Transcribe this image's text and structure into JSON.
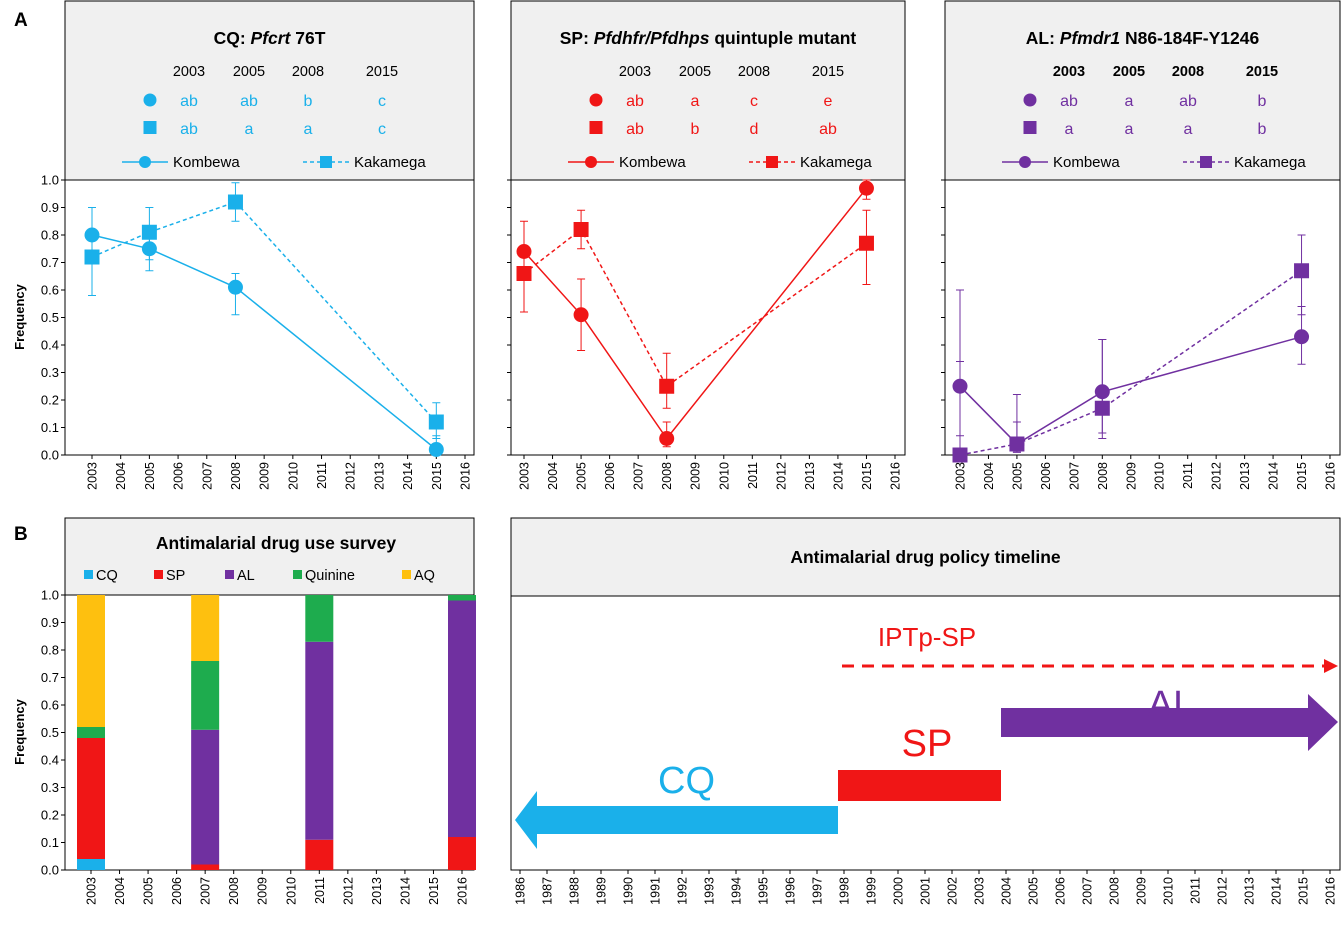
{
  "panel_labels": {
    "a": "A",
    "b": "B"
  },
  "ylabel": "Frequency",
  "y_ticks": [
    "0.0",
    "0.1",
    "0.2",
    "0.3",
    "0.4",
    "0.5",
    "0.6",
    "0.7",
    "0.8",
    "0.9",
    "1.0"
  ],
  "colors": {
    "cq": "#1ab0ea",
    "sp": "#f01616",
    "al": "#7030a0",
    "quinine": "#1eac4e",
    "aq": "#fec00f",
    "header_bg": "#f0f0f0"
  },
  "chart_data": [
    {
      "type": "line",
      "title_prefix": "CQ: ",
      "title_italic": "Pfcrt",
      "title_suffix": " 76T",
      "years_header": [
        "2003",
        "2005",
        "2008",
        "2015"
      ],
      "letters": {
        "Kombewa": [
          "ab",
          "ab",
          "b",
          "c"
        ],
        "Kakamega": [
          "ab",
          "a",
          "a",
          "c"
        ]
      },
      "legend": [
        "Kombewa",
        "Kakamega"
      ],
      "x_ticks": [
        "2003",
        "2004",
        "2005",
        "2006",
        "2007",
        "2008",
        "2009",
        "2010",
        "2011",
        "2012",
        "2013",
        "2014",
        "2015",
        "2016"
      ],
      "ylim": [
        0,
        1
      ],
      "series": [
        {
          "name": "Kombewa",
          "marker": "circle",
          "dash": false,
          "x": [
            2003,
            2005,
            2008,
            2015
          ],
          "y": [
            0.8,
            0.75,
            0.61,
            0.02
          ],
          "err_low": [
            0.07,
            0.08,
            0.1,
            0.01
          ],
          "err_high": [
            0.1,
            0.08,
            0.05,
            0.05
          ]
        },
        {
          "name": "Kakamega",
          "marker": "square",
          "dash": true,
          "x": [
            2003,
            2005,
            2008,
            2015
          ],
          "y": [
            0.72,
            0.81,
            0.92,
            0.12
          ],
          "err_low": [
            0.14,
            0.1,
            0.07,
            0.06
          ],
          "err_high": [
            0.08,
            0.09,
            0.07,
            0.07
          ]
        }
      ]
    },
    {
      "type": "line",
      "title_prefix": "SP: ",
      "title_italic": "Pfdhfr/Pfdhps",
      "title_suffix": "  quintuple mutant",
      "years_header": [
        "2003",
        "2005",
        "2008",
        "2015"
      ],
      "letters": {
        "Kombewa": [
          "ab",
          "a",
          "c",
          "e"
        ],
        "Kakamega": [
          "ab",
          "b",
          "d",
          "ab"
        ]
      },
      "legend": [
        "Kombewa",
        "Kakamega"
      ],
      "x_ticks": [
        "2003",
        "2004",
        "2005",
        "2006",
        "2007",
        "2008",
        "2009",
        "2010",
        "2011",
        "2012",
        "2013",
        "2014",
        "2015",
        "2016"
      ],
      "ylim": [
        0,
        1
      ],
      "series": [
        {
          "name": "Kombewa",
          "marker": "circle",
          "dash": false,
          "x": [
            2003,
            2005,
            2008,
            2015
          ],
          "y": [
            0.74,
            0.51,
            0.06,
            0.97
          ],
          "err_low": [
            0.08,
            0.13,
            0.03,
            0.04
          ],
          "err_high": [
            0.11,
            0.13,
            0.06,
            0.03
          ]
        },
        {
          "name": "Kakamega",
          "marker": "square",
          "dash": true,
          "x": [
            2003,
            2005,
            2008,
            2015
          ],
          "y": [
            0.66,
            0.82,
            0.25,
            0.77
          ],
          "err_low": [
            0.14,
            0.07,
            0.08,
            0.15
          ],
          "err_high": [
            0.1,
            0.07,
            0.12,
            0.12
          ]
        }
      ]
    },
    {
      "type": "line",
      "title_prefix": "AL: ",
      "title_italic": "Pfmdr1",
      "title_suffix": " N86-184F-Y1246",
      "years_header": [
        "2003",
        "2005",
        "2008",
        "2015"
      ],
      "letters": {
        "Kombewa": [
          "ab",
          "a",
          "ab",
          "b"
        ],
        "Kakamega": [
          "a",
          "a",
          "a",
          "b"
        ]
      },
      "legend": [
        "Kombewa",
        "Kakamega"
      ],
      "x_ticks": [
        "2003",
        "2004",
        "2005",
        "2006",
        "2007",
        "2008",
        "2009",
        "2010",
        "2011",
        "2012",
        "2013",
        "2014",
        "2015",
        "2016"
      ],
      "ylim": [
        0,
        1
      ],
      "series": [
        {
          "name": "Kombewa",
          "marker": "circle",
          "dash": false,
          "x": [
            2003,
            2005,
            2008,
            2015
          ],
          "y": [
            0.25,
            0.04,
            0.23,
            0.43
          ],
          "err_low": [
            0.18,
            0.03,
            0.15,
            0.1
          ],
          "err_high": [
            0.35,
            0.08,
            0.19,
            0.11
          ]
        },
        {
          "name": "Kakamega",
          "marker": "square",
          "dash": true,
          "x": [
            2003,
            2005,
            2008,
            2015
          ],
          "y": [
            0.0,
            0.04,
            0.17,
            0.67
          ],
          "err_low": [
            0.0,
            0.03,
            0.11,
            0.16
          ],
          "err_high": [
            0.34,
            0.18,
            0.25,
            0.13
          ]
        }
      ]
    },
    {
      "type": "bar",
      "stacked": true,
      "title": "Antimalarial  drug use survey",
      "legend": [
        "CQ",
        "SP",
        "AL",
        "Quinine",
        "AQ"
      ],
      "x_ticks": [
        "2003",
        "2004",
        "2005",
        "2006",
        "2007",
        "2008",
        "2009",
        "2010",
        "2011",
        "2012",
        "2013",
        "2014",
        "2015",
        "2016"
      ],
      "ylim": [
        0,
        1
      ],
      "categories": [
        "2003",
        "2007",
        "2011",
        "2016"
      ],
      "series": [
        {
          "name": "CQ",
          "values": [
            0.04,
            0.0,
            0.0,
            0.0
          ]
        },
        {
          "name": "SP",
          "values": [
            0.44,
            0.02,
            0.11,
            0.12
          ]
        },
        {
          "name": "AL",
          "values": [
            0.0,
            0.49,
            0.72,
            0.86
          ]
        },
        {
          "name": "Quinine",
          "values": [
            0.04,
            0.25,
            0.17,
            0.02
          ]
        },
        {
          "name": "AQ",
          "values": [
            0.48,
            0.24,
            0.0,
            0.0
          ]
        }
      ]
    },
    {
      "type": "timeline",
      "title": "Antimalarial  drug policy timeline",
      "x_ticks": [
        "1986",
        "1987",
        "1988",
        "1989",
        "1990",
        "1991",
        "1992",
        "1993",
        "1994",
        "1995",
        "1996",
        "1997",
        "1998",
        "1999",
        "2000",
        "2001",
        "2002",
        "2003",
        "2004",
        "2005",
        "2006",
        "2007",
        "2008",
        "2009",
        "2010",
        "2011",
        "2012",
        "2013",
        "2014",
        "2015",
        "2016"
      ],
      "xlim": [
        1986,
        2016
      ],
      "periods": [
        {
          "label": "CQ",
          "start": 1986,
          "end": 1998,
          "arrow": "left"
        },
        {
          "label": "SP",
          "start": 1998,
          "end": 2004,
          "arrow": "none"
        },
        {
          "label": "AL",
          "start": 2004,
          "end": 2016,
          "arrow": "right"
        },
        {
          "label": "IPTp-SP",
          "start": 1998,
          "end": 2016,
          "arrow": "right",
          "dashed": true
        }
      ]
    }
  ]
}
